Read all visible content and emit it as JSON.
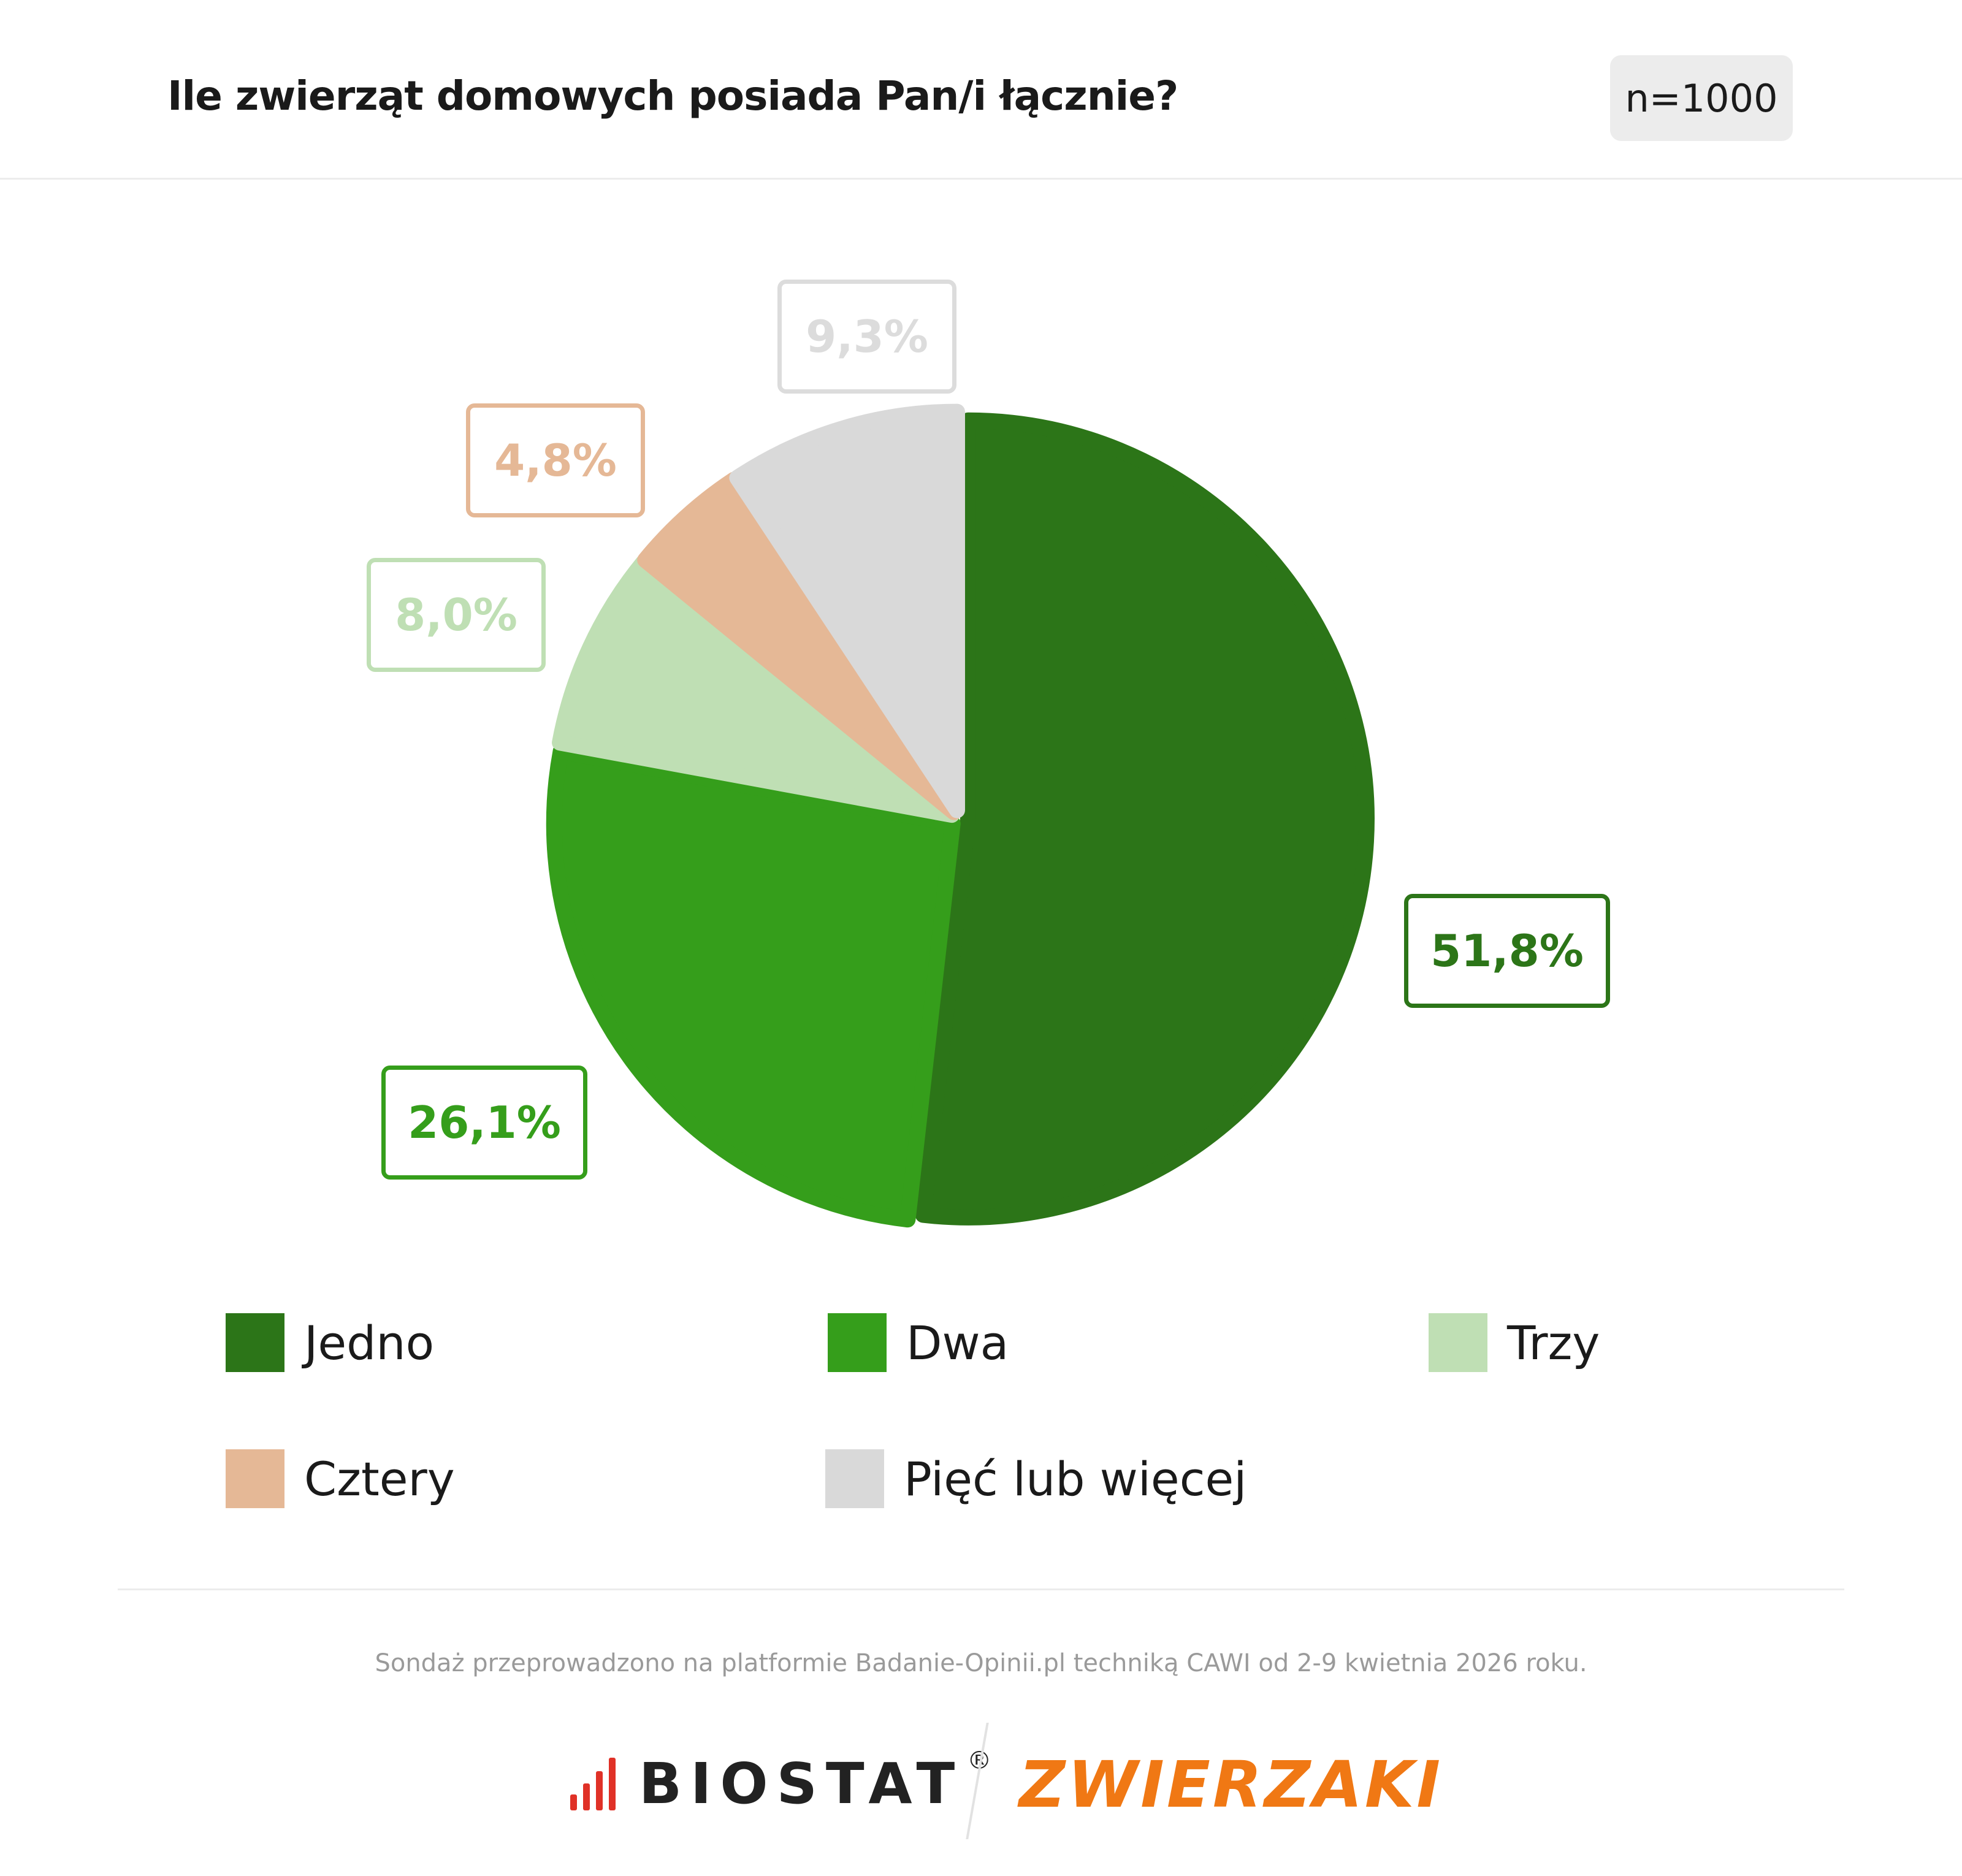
{
  "header": {
    "title": "Ile zwierząt domowych posiada Pan/i łącznie?",
    "sample": "n=1000"
  },
  "chart_data": {
    "type": "pie",
    "title": "Ile zwierząt domowych posiada Pan/i łącznie?",
    "slices": [
      {
        "name": "Jedno",
        "value": 51.8,
        "label": "51,8%",
        "color": "#2c7518"
      },
      {
        "name": "Dwa",
        "value": 26.1,
        "label": "26,1%",
        "color": "#359e1b"
      },
      {
        "name": "Trzy",
        "value": 8.0,
        "label": "8,0%",
        "color": "#bfdfb4"
      },
      {
        "name": "Cztery",
        "value": 4.8,
        "label": "4,8%",
        "color": "#e5b896"
      },
      {
        "name": "Pięć lub więcej",
        "value": 9.3,
        "label": "9,3%",
        "color": "#d9d9d9"
      }
    ],
    "label_colors": [
      "#2c7518",
      "#359e1b",
      "#bfdfb4",
      "#e5b896",
      "#dcdcdc"
    ],
    "legend_position": "bottom",
    "start_angle": "top",
    "direction": "clockwise"
  },
  "footer": {
    "source": "Sondaż przeprowadzono na platformie Badanie-Opinii.pl techniką CAWI od 2-9 kwietnia 2026 roku.",
    "logo_left": "BIOSTAT",
    "logo_left_mark": "®",
    "logo_right": "ZWIERZAKI"
  }
}
